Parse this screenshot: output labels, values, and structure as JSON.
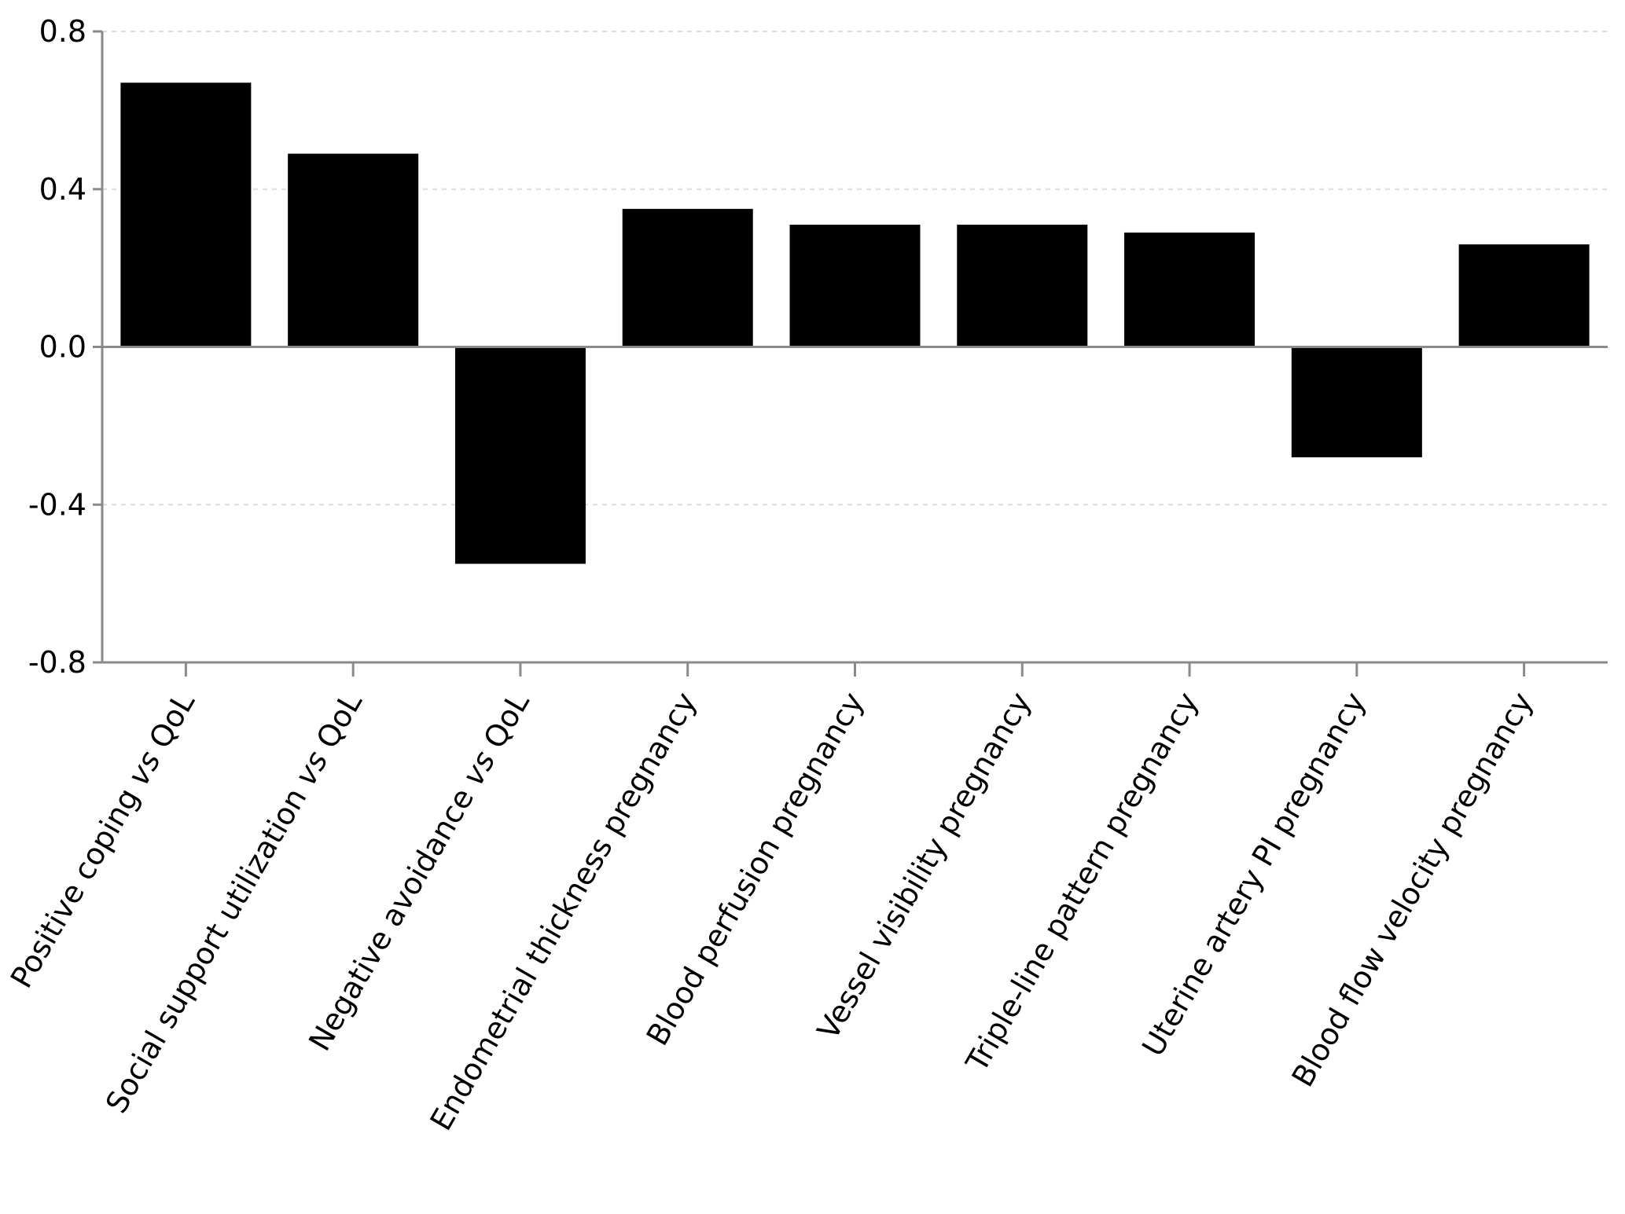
{
  "chart_data": {
    "type": "bar",
    "title": "",
    "xlabel": "",
    "ylabel": "",
    "ylim": [
      -0.8,
      0.8
    ],
    "yticks": [
      "0.8",
      "0.4",
      "0.0",
      "-0.4",
      "-0.8"
    ],
    "grid": true,
    "legend": "none",
    "categories": [
      [
        {
          "t": "Positive coping "
        },
        {
          "t": "vs",
          "i": true
        },
        {
          "t": " QoL"
        }
      ],
      [
        {
          "t": "Social support utilization "
        },
        {
          "t": "vs",
          "i": true
        },
        {
          "t": " QoL"
        }
      ],
      [
        {
          "t": "Negative avoidance "
        },
        {
          "t": "vs",
          "i": true
        },
        {
          "t": " QoL"
        }
      ],
      [
        {
          "t": "Endometrial thickness pregnancy"
        }
      ],
      [
        {
          "t": "Blood perfusion pregnancy"
        }
      ],
      [
        {
          "t": "Vessel visibility pregnancy"
        }
      ],
      [
        {
          "t": "Triple-line pattern pregnancy"
        }
      ],
      [
        {
          "t": "Uterine artery PI pregnancy"
        }
      ],
      [
        {
          "t": "Blood flow velocity pregnancy"
        }
      ]
    ],
    "values": [
      0.67,
      0.49,
      -0.55,
      0.35,
      0.31,
      0.31,
      0.29,
      -0.28,
      0.26
    ],
    "colors": {
      "bar": "#000000",
      "axis": "#8a8a8a",
      "grid": "#dcdcdc",
      "text": "#000000"
    }
  }
}
